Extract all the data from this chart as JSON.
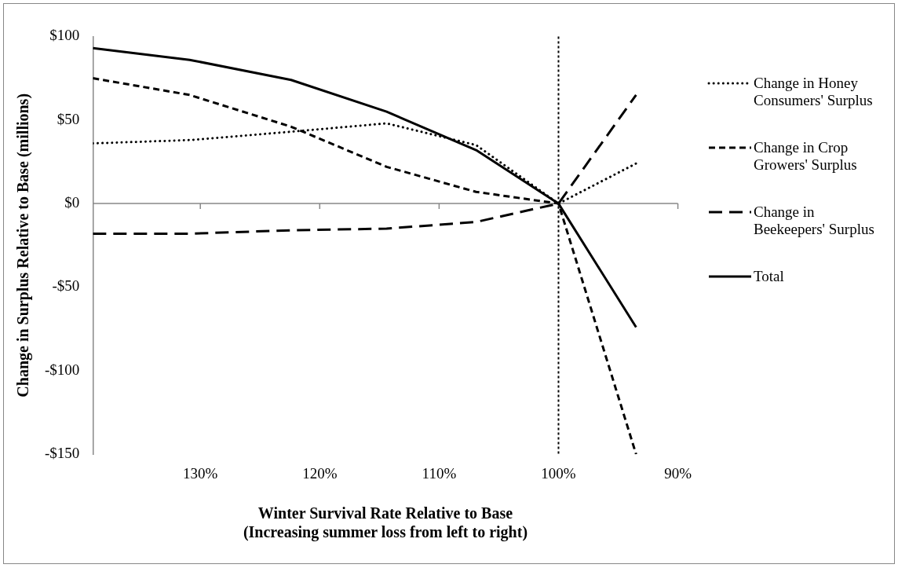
{
  "chart_data": {
    "type": "line",
    "xlabel": "Winter Survival Rate Relative to Base\n(Increasing summer loss from left to right)",
    "ylabel": "Change in Surplus Relative to Base (millions)",
    "x": [
      139,
      130.9,
      122.4,
      114.4,
      106.9,
      100,
      93.5
    ],
    "series": [
      {
        "name": "Change in Honey Consumers' Surplus",
        "color": "#000000",
        "line_style": "dotted",
        "values": [
          36,
          38,
          43,
          48,
          35,
          0,
          24
        ]
      },
      {
        "name": "Change in Crop Growers' Surplus",
        "color": "#000000",
        "line_style": "dashed",
        "values": [
          75,
          65,
          46,
          22,
          7,
          0,
          -150
        ]
      },
      {
        "name": "Change in Beekeepers' Surplus",
        "color": "#000000",
        "line_style": "longdash",
        "values": [
          -18,
          -18,
          -16,
          -15,
          -11,
          0,
          65
        ]
      },
      {
        "name": "Total",
        "color": "#000000",
        "line_style": "solid",
        "values": [
          93,
          86,
          74,
          55,
          32,
          0,
          -74
        ]
      }
    ],
    "xlim": [
      139,
      90
    ],
    "xticks": [
      {
        "value": 130,
        "label": "130%"
      },
      {
        "value": 120,
        "label": "120%"
      },
      {
        "value": 110,
        "label": "110%"
      },
      {
        "value": 100,
        "label": "100%"
      },
      {
        "value": 90,
        "label": "90%"
      }
    ],
    "ylim": [
      -150,
      100
    ],
    "yticks": [
      {
        "value": -150,
        "label": "-$150"
      },
      {
        "value": -100,
        "label": "-$100"
      },
      {
        "value": -50,
        "label": "-$50"
      },
      {
        "value": 0,
        "label": "$0"
      },
      {
        "value": 50,
        "label": "$50"
      },
      {
        "value": 100,
        "label": "$100"
      }
    ],
    "ref_lines": [
      {
        "axis": "x",
        "value": 100,
        "color": "#000000",
        "line_style": "dotted"
      }
    ],
    "grid": false,
    "legend": "right",
    "marker": "none"
  }
}
